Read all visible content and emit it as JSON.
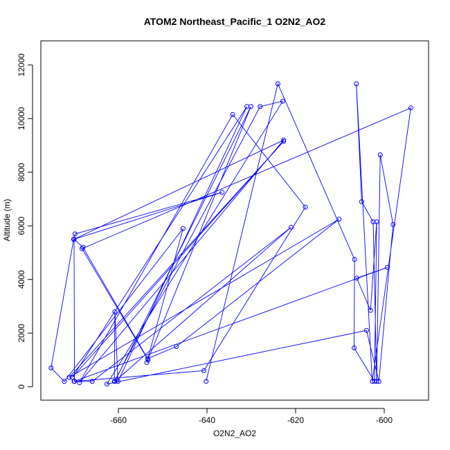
{
  "chart_data": {
    "type": "line",
    "title": "ATOM2 Northeast_Pacific_1 O2N2_AO2",
    "xlabel": "O2N2_AO2",
    "ylabel": "Altitude (m)",
    "xlim": [
      -677.5,
      -590
    ],
    "ylim": [
      -500,
      12900
    ],
    "x_ticks": [
      -660,
      -640,
      -620,
      -600
    ],
    "x_tick_labels": [
      "-660",
      "-640",
      "-620",
      "-600"
    ],
    "y_ticks": [
      0,
      2000,
      4000,
      6000,
      8000,
      10000,
      12000
    ],
    "y_tick_labels": [
      "0",
      "2000",
      "4000",
      "6000",
      "8000",
      "10000",
      "12000"
    ],
    "grid": false,
    "series": [
      {
        "color": "#0000ff",
        "marker": "open-circle",
        "points": [
          [
            -640.2,
            200
          ],
          [
            -624.0,
            11300
          ],
          [
            -606.7,
            4750
          ],
          [
            -606.8,
            1450
          ],
          [
            -602.2,
            200
          ],
          [
            -601.7,
            6150
          ],
          [
            -603.1,
            2850
          ],
          [
            -606.2,
            4050
          ],
          [
            -599.3,
            4450
          ],
          [
            -670.0,
            200
          ],
          [
            -640.7,
            600
          ],
          [
            -617.8,
            6700
          ],
          [
            -634.2,
            10150
          ],
          [
            -668.8,
            150
          ],
          [
            -622.7,
            9200
          ],
          [
            -670.0,
            5500
          ],
          [
            -669.9,
            200
          ],
          [
            -665.9,
            200
          ],
          [
            -621.0,
            5950
          ],
          [
            -660.8,
            200
          ],
          [
            -630.1,
            10450
          ],
          [
            -653.6,
            900
          ],
          [
            -645.4,
            5900
          ],
          [
            -672.2,
            200
          ],
          [
            -675.2,
            700
          ],
          [
            -670.1,
            5500
          ],
          [
            -669.8,
            5700
          ],
          [
            -636.6,
            7250
          ],
          [
            -670.0,
            5500
          ],
          [
            -668.0,
            5200
          ],
          [
            -653.4,
            1050
          ],
          [
            -646.9,
            1500
          ],
          [
            -610.2,
            6250
          ],
          [
            -671.1,
            350
          ],
          [
            -622.7,
            9150
          ],
          [
            -670.4,
            350
          ],
          [
            -631.0,
            10450
          ],
          [
            -660.1,
            200
          ],
          [
            -660.8,
            2800
          ],
          [
            -660.9,
            200
          ],
          [
            -628.0,
            10450
          ],
          [
            -622.9,
            10650
          ],
          [
            -662.6,
            100
          ],
          [
            -604.0,
            2100
          ],
          [
            -601.2,
            200
          ],
          [
            -598.0,
            6050
          ],
          [
            -600.9,
            8650
          ],
          [
            -601.7,
            200
          ],
          [
            -602.5,
            6150
          ],
          [
            -605.1,
            6900
          ],
          [
            -606.3,
            11300
          ],
          [
            -602.7,
            200
          ],
          [
            -594.0,
            10400
          ],
          [
            -668.2,
            5150
          ],
          [
            -653.3,
            1000
          ]
        ]
      }
    ]
  }
}
